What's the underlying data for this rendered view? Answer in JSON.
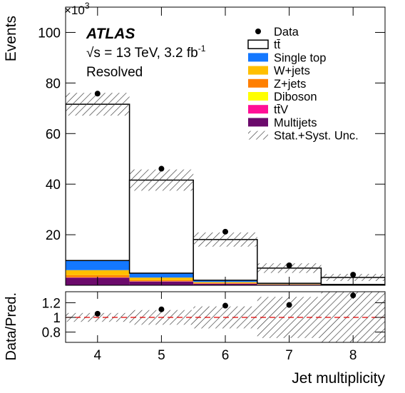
{
  "chart_data": [
    {
      "type": "stacked-histogram",
      "title": "ATLAS",
      "energy_label": "√s = 13 TeV, 3.2 fb",
      "energy_label_exponent": "-1",
      "region": "Resolved",
      "y_label": "Events",
      "y_scale_label": "×10",
      "y_scale_exponent": "3",
      "bins": [
        3.5,
        4.5,
        5.5,
        6.5,
        7.5,
        8.5
      ],
      "xlim": [
        3.5,
        8.5
      ],
      "ylim": [
        0,
        110
      ],
      "yticks": [
        20,
        40,
        60,
        80,
        100
      ],
      "data": {
        "name": "Data",
        "values": [
          75.8,
          46.1,
          21.2,
          7.9,
          4.2
        ]
      },
      "series": [
        {
          "name": "Multijets",
          "color": "#6b0a6b",
          "values": [
            3.0,
            1.5,
            0.6,
            0.25,
            0.1
          ]
        },
        {
          "name": "tt̄V",
          "color": "#ff0f96",
          "values": [
            0.1,
            0.1,
            0.08,
            0.04,
            0.02
          ]
        },
        {
          "name": "Diboson",
          "color": "#ffff00",
          "values": [
            0.1,
            0.05,
            0.02,
            0.01,
            0.005
          ]
        },
        {
          "name": "Z+jets",
          "color": "#ff7f00",
          "values": [
            0.8,
            0.4,
            0.2,
            0.08,
            0.04
          ]
        },
        {
          "name": "W+jets",
          "color": "#ffbf00",
          "values": [
            2.0,
            1.0,
            0.4,
            0.15,
            0.07
          ]
        },
        {
          "name": "Single top",
          "color": "#1478ff",
          "values": [
            3.8,
            1.75,
            0.7,
            0.27,
            0.115
          ]
        },
        {
          "name": "tt̄",
          "color": "#ffffff",
          "values": [
            61.8,
            36.8,
            16.1,
            6.0,
            2.75
          ]
        }
      ],
      "uncertainty": {
        "name": "Stat.+Syst. Unc.",
        "values": [
          4.5,
          4.2,
          2.8,
          1.9,
          1.4
        ]
      }
    },
    {
      "type": "ratio",
      "y_label": "Data/Pred.",
      "x_label": "Jet multiplicity",
      "xlim": [
        3.5,
        8.5
      ],
      "xticks": [
        4,
        5,
        6,
        7,
        8
      ],
      "ylim": [
        0.66,
        1.35
      ],
      "yticks": [
        0.8,
        1,
        1.2
      ],
      "reference": 1,
      "reference_color": "#e00000",
      "values": [
        1.05,
        1.11,
        1.16,
        1.17,
        1.3
      ],
      "uncertainty": [
        0.06,
        0.1,
        0.15,
        0.28,
        0.45
      ]
    }
  ]
}
